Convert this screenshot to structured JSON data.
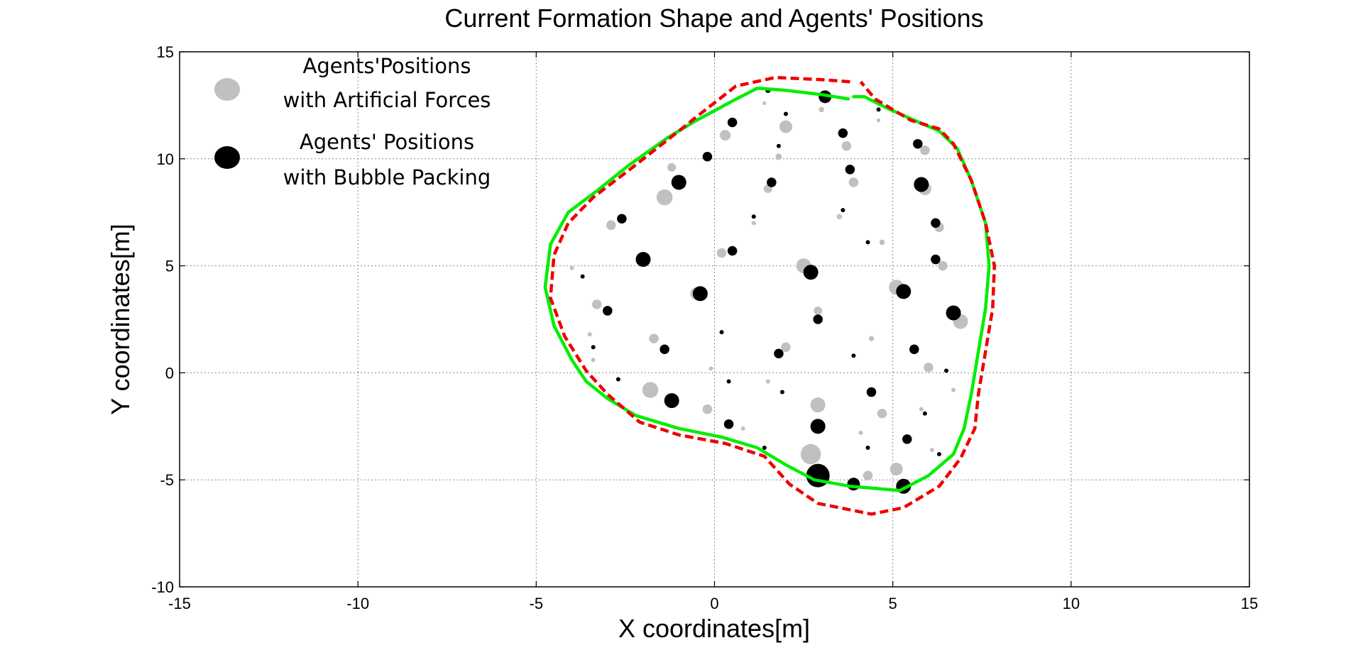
{
  "chart_data": {
    "type": "scatter",
    "title": "Current Formation Shape and Agents' Positions",
    "xlabel": "X coordinates[m]",
    "ylabel": "Y coordinates[m]",
    "xlim": [
      -15,
      15
    ],
    "ylim": [
      -10,
      15
    ],
    "xticks": [
      -15,
      -10,
      -5,
      0,
      5,
      10,
      15
    ],
    "yticks": [
      -10,
      -5,
      0,
      5,
      10,
      15
    ],
    "grid": true,
    "legend_position": "top-left",
    "legend": [
      {
        "line1": "Agents'Positions",
        "line2": "with Artificial Forces",
        "color": "#c0c0c0"
      },
      {
        "line1": "Agents' Positions",
        "line2": "with  Bubble Packing",
        "color": "#000000"
      }
    ],
    "series": [
      {
        "kind": "points",
        "color": "#c0c0c0",
        "points": [
          [
            1.4,
            12.6,
            0.35
          ],
          [
            3.0,
            12.3,
            0.5
          ],
          [
            4.6,
            11.8,
            0.35
          ],
          [
            0.3,
            11.1,
            1.0
          ],
          [
            2.0,
            11.5,
            1.2
          ],
          [
            3.7,
            10.6,
            0.9
          ],
          [
            1.8,
            10.1,
            0.6
          ],
          [
            5.9,
            10.4,
            0.9
          ],
          [
            -1.2,
            9.6,
            0.8
          ],
          [
            3.9,
            8.9,
            0.9
          ],
          [
            1.5,
            8.6,
            0.8
          ],
          [
            -1.4,
            8.2,
            1.5
          ],
          [
            5.9,
            8.6,
            1.2
          ],
          [
            3.5,
            7.3,
            0.5
          ],
          [
            1.1,
            7.0,
            0.4
          ],
          [
            -2.9,
            6.9,
            0.9
          ],
          [
            6.3,
            6.8,
            0.9
          ],
          [
            4.7,
            6.1,
            0.5
          ],
          [
            0.2,
            5.6,
            0.9
          ],
          [
            6.4,
            5.0,
            0.9
          ],
          [
            2.5,
            5.0,
            1.4
          ],
          [
            -4.0,
            4.9,
            0.4
          ],
          [
            5.1,
            4.0,
            1.4
          ],
          [
            -0.5,
            3.7,
            1.2
          ],
          [
            -3.3,
            3.2,
            0.9
          ],
          [
            2.9,
            2.9,
            0.8
          ],
          [
            6.9,
            2.4,
            1.4
          ],
          [
            -3.5,
            1.8,
            0.4
          ],
          [
            4.4,
            1.6,
            0.5
          ],
          [
            -1.7,
            1.6,
            0.9
          ],
          [
            2.0,
            1.2,
            0.9
          ],
          [
            -3.4,
            0.6,
            0.4
          ],
          [
            6.0,
            0.25,
            0.9
          ],
          [
            -0.1,
            0.2,
            0.4
          ],
          [
            1.5,
            -0.4,
            0.4
          ],
          [
            -1.8,
            -0.8,
            1.5
          ],
          [
            6.7,
            -0.8,
            0.4
          ],
          [
            2.9,
            -1.5,
            1.4
          ],
          [
            5.8,
            -1.7,
            0.4
          ],
          [
            -0.2,
            -1.7,
            0.9
          ],
          [
            4.7,
            -1.9,
            0.9
          ],
          [
            0.8,
            -2.6,
            0.4
          ],
          [
            4.1,
            -2.8,
            0.4
          ],
          [
            6.1,
            -3.6,
            0.4
          ],
          [
            2.7,
            -3.8,
            1.9
          ],
          [
            5.1,
            -4.5,
            1.2
          ],
          [
            4.3,
            -4.8,
            0.9
          ]
        ]
      },
      {
        "kind": "points",
        "color": "#000000",
        "points": [
          [
            1.5,
            13.2,
            0.5
          ],
          [
            3.1,
            12.9,
            1.2
          ],
          [
            4.6,
            12.3,
            0.4
          ],
          [
            0.5,
            11.7,
            0.9
          ],
          [
            2.0,
            12.1,
            0.4
          ],
          [
            3.6,
            11.2,
            0.9
          ],
          [
            1.8,
            10.6,
            0.4
          ],
          [
            5.7,
            10.7,
            0.9
          ],
          [
            -0.2,
            10.1,
            0.9
          ],
          [
            3.8,
            9.5,
            0.9
          ],
          [
            1.6,
            8.9,
            0.9
          ],
          [
            -1.0,
            8.9,
            1.4
          ],
          [
            5.8,
            8.8,
            1.4
          ],
          [
            3.6,
            7.6,
            0.4
          ],
          [
            1.1,
            7.3,
            0.4
          ],
          [
            -2.6,
            7.2,
            0.9
          ],
          [
            6.2,
            7.0,
            0.9
          ],
          [
            4.3,
            6.1,
            0.4
          ],
          [
            0.5,
            5.7,
            0.9
          ],
          [
            6.2,
            5.3,
            0.9
          ],
          [
            -2.0,
            5.3,
            1.4
          ],
          [
            2.7,
            4.7,
            1.4
          ],
          [
            -3.7,
            4.5,
            0.4
          ],
          [
            5.3,
            3.8,
            1.4
          ],
          [
            -0.4,
            3.7,
            1.4
          ],
          [
            -3.0,
            2.9,
            0.9
          ],
          [
            6.7,
            2.8,
            1.4
          ],
          [
            2.9,
            2.5,
            0.9
          ],
          [
            0.2,
            1.9,
            0.4
          ],
          [
            -3.4,
            1.2,
            0.4
          ],
          [
            -1.4,
            1.1,
            0.9
          ],
          [
            5.6,
            1.1,
            0.9
          ],
          [
            1.8,
            0.9,
            0.9
          ],
          [
            3.9,
            0.8,
            0.4
          ],
          [
            6.5,
            0.1,
            0.4
          ],
          [
            -2.7,
            -0.3,
            0.4
          ],
          [
            0.4,
            -0.4,
            0.4
          ],
          [
            4.4,
            -0.9,
            0.9
          ],
          [
            1.9,
            -0.9,
            0.4
          ],
          [
            -1.2,
            -1.3,
            1.4
          ],
          [
            5.9,
            -1.9,
            0.4
          ],
          [
            0.4,
            -2.4,
            0.9
          ],
          [
            2.9,
            -2.5,
            1.4
          ],
          [
            5.4,
            -3.1,
            0.9
          ],
          [
            1.4,
            -3.5,
            0.4
          ],
          [
            4.3,
            -3.5,
            0.4
          ],
          [
            6.3,
            -3.8,
            0.4
          ],
          [
            2.9,
            -4.8,
            2.2
          ],
          [
            3.9,
            -5.2,
            1.2
          ],
          [
            5.3,
            -5.3,
            1.4
          ]
        ]
      },
      {
        "kind": "curve",
        "style": "solid",
        "color": "#00ee00",
        "points": [
          [
            3.75,
            12.8
          ],
          [
            3.0,
            13.0
          ],
          [
            2.0,
            13.2
          ],
          [
            1.2,
            13.3
          ],
          [
            0.5,
            12.7
          ],
          [
            -0.5,
            11.8
          ],
          [
            -1.3,
            11.0
          ],
          [
            -2.4,
            9.7
          ],
          [
            -3.3,
            8.5
          ],
          [
            -4.1,
            7.5
          ],
          [
            -4.6,
            6.0
          ],
          [
            -4.75,
            4.0
          ],
          [
            -4.5,
            2.2
          ],
          [
            -4.0,
            0.6
          ],
          [
            -3.6,
            -0.4
          ],
          [
            -3.0,
            -1.2
          ],
          [
            -2.2,
            -2.0
          ],
          [
            -1.0,
            -2.6
          ],
          [
            0.2,
            -3.0
          ],
          [
            1.2,
            -3.5
          ],
          [
            2.0,
            -4.3
          ],
          [
            2.8,
            -5.0
          ],
          [
            3.8,
            -5.3
          ],
          [
            5.2,
            -5.5
          ],
          [
            6.0,
            -4.8
          ],
          [
            6.7,
            -3.8
          ],
          [
            7.0,
            -2.6
          ],
          [
            7.2,
            -1.0
          ],
          [
            7.4,
            1.0
          ],
          [
            7.6,
            3.0
          ],
          [
            7.7,
            5.0
          ],
          [
            7.6,
            7.0
          ],
          [
            7.2,
            9.0
          ],
          [
            6.8,
            10.5
          ],
          [
            6.3,
            11.3
          ],
          [
            5.6,
            11.8
          ],
          [
            4.8,
            12.4
          ],
          [
            4.2,
            12.9
          ],
          [
            3.9,
            12.9
          ]
        ]
      },
      {
        "kind": "curve",
        "style": "dashed",
        "color": "#ee0000",
        "points": [
          [
            3.8,
            13.6
          ],
          [
            3.0,
            13.7
          ],
          [
            1.7,
            13.8
          ],
          [
            0.6,
            13.4
          ],
          [
            -0.4,
            12.1
          ],
          [
            -1.0,
            11.3
          ],
          [
            -2.3,
            9.6
          ],
          [
            -3.4,
            8.2
          ],
          [
            -4.1,
            7.0
          ],
          [
            -4.5,
            5.5
          ],
          [
            -4.6,
            3.5
          ],
          [
            -4.2,
            1.7
          ],
          [
            -3.6,
            0.1
          ],
          [
            -3.0,
            -1.0
          ],
          [
            -2.1,
            -2.3
          ],
          [
            -1.0,
            -2.9
          ],
          [
            0.3,
            -3.3
          ],
          [
            1.4,
            -3.9
          ],
          [
            2.1,
            -5.2
          ],
          [
            2.9,
            -6.1
          ],
          [
            3.8,
            -6.4
          ],
          [
            4.4,
            -6.6
          ],
          [
            5.3,
            -6.3
          ],
          [
            6.3,
            -5.3
          ],
          [
            6.9,
            -4.0
          ],
          [
            7.3,
            -2.6
          ],
          [
            7.4,
            -1.0
          ],
          [
            7.6,
            1.0
          ],
          [
            7.8,
            3.0
          ],
          [
            7.85,
            5.0
          ],
          [
            7.6,
            7.0
          ],
          [
            7.2,
            9.0
          ],
          [
            6.7,
            10.7
          ],
          [
            6.3,
            11.4
          ],
          [
            5.5,
            11.8
          ],
          [
            5.0,
            12.3
          ],
          [
            4.5,
            12.8
          ],
          [
            4.1,
            13.6
          ]
        ]
      }
    ]
  }
}
